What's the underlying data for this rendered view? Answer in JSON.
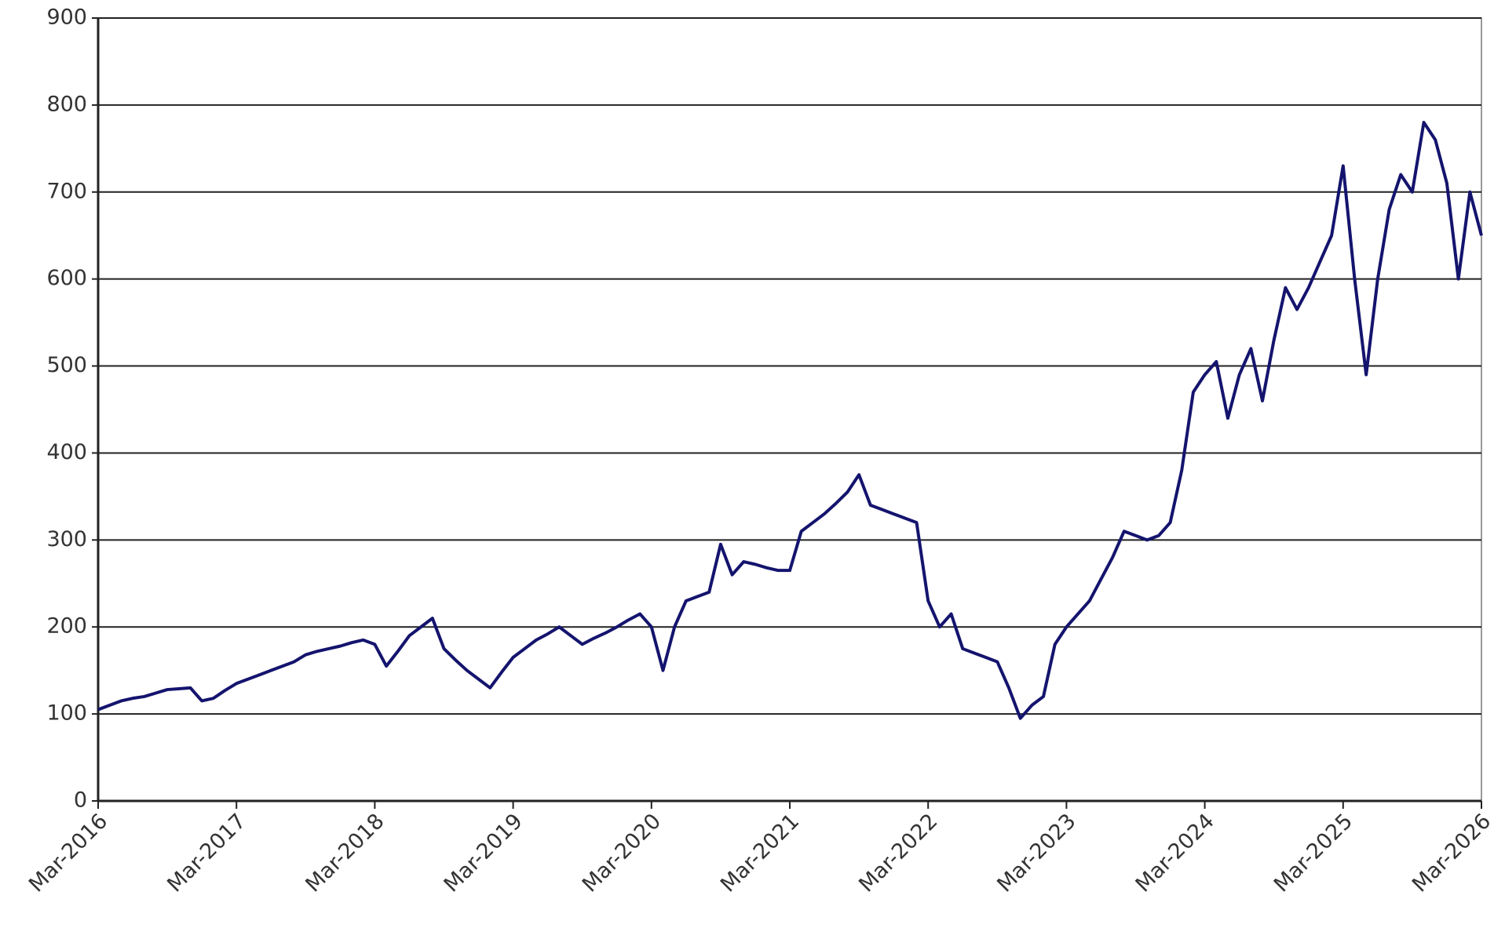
{
  "chart_data": {
    "type": "line",
    "x": [
      "2016-03",
      "2016-04",
      "2016-05",
      "2016-06",
      "2016-07",
      "2016-08",
      "2016-09",
      "2016-10",
      "2016-11",
      "2016-12",
      "2017-01",
      "2017-02",
      "2017-03",
      "2017-04",
      "2017-05",
      "2017-06",
      "2017-07",
      "2017-08",
      "2017-09",
      "2017-10",
      "2017-11",
      "2017-12",
      "2018-01",
      "2018-02",
      "2018-03",
      "2018-04",
      "2018-05",
      "2018-06",
      "2018-07",
      "2018-08",
      "2018-09",
      "2018-10",
      "2018-11",
      "2018-12",
      "2019-01",
      "2019-02",
      "2019-03",
      "2019-04",
      "2019-05",
      "2019-06",
      "2019-07",
      "2019-08",
      "2019-09",
      "2019-10",
      "2019-11",
      "2019-12",
      "2020-01",
      "2020-02",
      "2020-03",
      "2020-04",
      "2020-05",
      "2020-06",
      "2020-07",
      "2020-08",
      "2020-09",
      "2020-10",
      "2020-11",
      "2020-12",
      "2021-01",
      "2021-02",
      "2021-03",
      "2021-04",
      "2021-05",
      "2021-06",
      "2021-07",
      "2021-08",
      "2021-09",
      "2021-10",
      "2021-11",
      "2021-12",
      "2022-01",
      "2022-02",
      "2022-03",
      "2022-04",
      "2022-05",
      "2022-06",
      "2022-07",
      "2022-08",
      "2022-09",
      "2022-10",
      "2022-11",
      "2022-12",
      "2023-01",
      "2023-02",
      "2023-03",
      "2023-04",
      "2023-05",
      "2023-06",
      "2023-07",
      "2023-08",
      "2023-09",
      "2023-10",
      "2023-11",
      "2023-12",
      "2024-01",
      "2024-02",
      "2024-03",
      "2024-04",
      "2024-05",
      "2024-06",
      "2024-07",
      "2024-08",
      "2024-09",
      "2024-10",
      "2024-11",
      "2024-12",
      "2025-01",
      "2025-02",
      "2025-03",
      "2025-04",
      "2025-05",
      "2025-06",
      "2025-07",
      "2025-08",
      "2025-09",
      "2025-10",
      "2025-11",
      "2025-12",
      "2026-01",
      "2026-02",
      "2026-03"
    ],
    "values": [
      105,
      110,
      115,
      118,
      120,
      124,
      128,
      129,
      130,
      115,
      118,
      127,
      135,
      140,
      145,
      150,
      155,
      160,
      168,
      172,
      175,
      178,
      182,
      185,
      180,
      155,
      172,
      190,
      200,
      210,
      175,
      162,
      150,
      140,
      130,
      148,
      165,
      175,
      185,
      192,
      200,
      190,
      180,
      187,
      193,
      200,
      208,
      215,
      200,
      150,
      200,
      230,
      235,
      240,
      295,
      260,
      275,
      272,
      268,
      265,
      265,
      310,
      320,
      330,
      342,
      355,
      375,
      340,
      335,
      330,
      325,
      320,
      230,
      200,
      215,
      175,
      170,
      165,
      160,
      130,
      95,
      110,
      120,
      180,
      200,
      215,
      230,
      255,
      280,
      310,
      305,
      300,
      305,
      320,
      380,
      470,
      490,
      505,
      440,
      490,
      520,
      460,
      530,
      590,
      565,
      590,
      620,
      650,
      730,
      600,
      490,
      600,
      680,
      720,
      700,
      780,
      760,
      710,
      600,
      700,
      650
    ],
    "color": "#14146e",
    "xlim": [
      "2016-03",
      "2026-03"
    ],
    "xticks": [
      {
        "value": "2016-03",
        "label": "Mar-2016"
      },
      {
        "value": "2017-03",
        "label": "Mar-2017"
      },
      {
        "value": "2018-03",
        "label": "Mar-2018"
      },
      {
        "value": "2019-03",
        "label": "Mar-2019"
      },
      {
        "value": "2020-03",
        "label": "Mar-2020"
      },
      {
        "value": "2021-03",
        "label": "Mar-2021"
      },
      {
        "value": "2022-03",
        "label": "Mar-2022"
      },
      {
        "value": "2023-03",
        "label": "Mar-2023"
      },
      {
        "value": "2024-03",
        "label": "Mar-2024"
      },
      {
        "value": "2025-03",
        "label": "Mar-2025"
      },
      {
        "value": "2026-03",
        "label": "Mar-2026"
      }
    ],
    "ylim": [
      0,
      900
    ],
    "yticks": [
      0,
      100,
      200,
      300,
      400,
      500,
      600,
      700,
      800,
      900
    ],
    "grid": true
  }
}
